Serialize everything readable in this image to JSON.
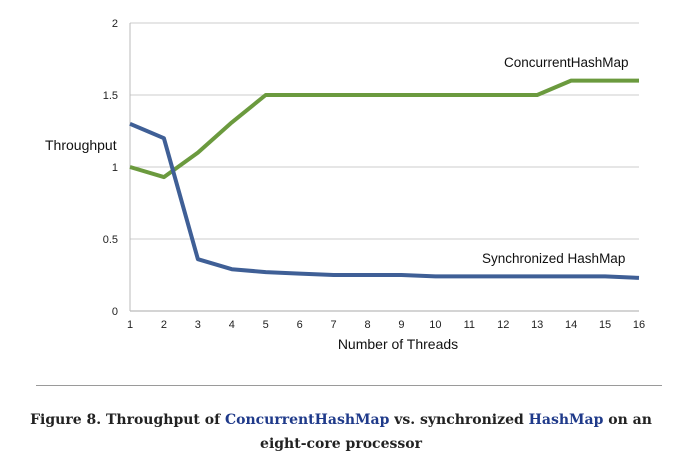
{
  "chart_data": {
    "type": "line",
    "x": [
      1,
      2,
      3,
      4,
      5,
      6,
      7,
      8,
      9,
      10,
      11,
      12,
      13,
      14,
      15,
      16
    ],
    "series": [
      {
        "name": "ConcurrentHashMap",
        "color": "#6b9a3e",
        "values": [
          1.0,
          0.93,
          1.1,
          1.31,
          1.5,
          1.5,
          1.5,
          1.5,
          1.5,
          1.5,
          1.5,
          1.5,
          1.5,
          1.6,
          1.6,
          1.6
        ]
      },
      {
        "name": "Synchronized HashMap",
        "color": "#3f5f96",
        "values": [
          1.3,
          1.2,
          0.36,
          0.29,
          0.27,
          0.26,
          0.25,
          0.25,
          0.25,
          0.24,
          0.24,
          0.24,
          0.24,
          0.24,
          0.24,
          0.23
        ]
      }
    ],
    "xlabel": "Number of Threads",
    "ylabel": "Throughput",
    "xticks": [
      "1",
      "2",
      "3",
      "4",
      "5",
      "6",
      "7",
      "8",
      "9",
      "10",
      "11",
      "12",
      "13",
      "14",
      "15",
      "16"
    ],
    "yticks": [
      "0",
      "0.5",
      "1",
      "1.5",
      "2"
    ],
    "xlim": [
      1,
      16
    ],
    "ylim": [
      0,
      2
    ],
    "grid": "horizontal"
  },
  "caption": {
    "part1": "Figure 8. Throughput of ",
    "code1": "ConcurrentHashMap",
    "part2": " vs. synchronized ",
    "code2": "HashMap",
    "part3": " on an eight-core processor"
  }
}
